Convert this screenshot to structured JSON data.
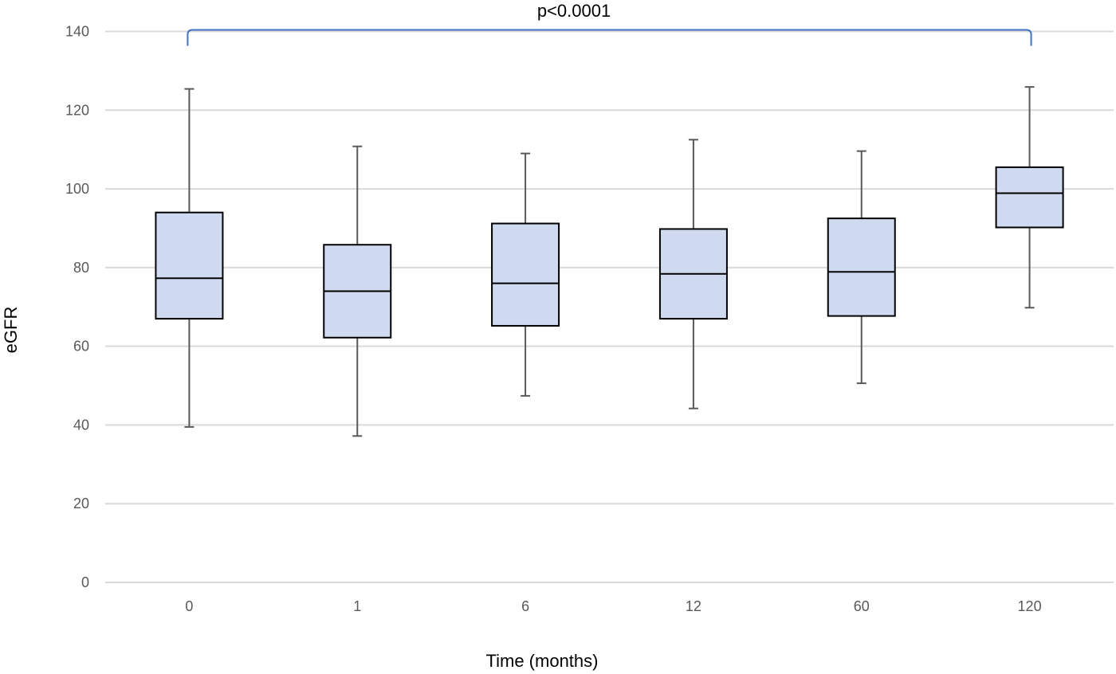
{
  "chart_data": {
    "type": "box",
    "title": "",
    "xlabel": "Time (months)",
    "ylabel": "eGFR",
    "ylim": [
      0,
      140
    ],
    "yticks": [
      0,
      20,
      40,
      60,
      80,
      100,
      120,
      140
    ],
    "grid": true,
    "legend": "none",
    "categories": [
      "0",
      "1",
      "6",
      "12",
      "60",
      "120"
    ],
    "boxes": [
      {
        "category": "0",
        "min": 39.5,
        "q1": 67.0,
        "median": 77.3,
        "q3": 94.0,
        "max": 125.4
      },
      {
        "category": "1",
        "min": 37.2,
        "q1": 62.2,
        "median": 74.0,
        "q3": 85.8,
        "max": 110.8
      },
      {
        "category": "6",
        "min": 47.4,
        "q1": 65.2,
        "median": 76.0,
        "q3": 91.2,
        "max": 109.0
      },
      {
        "category": "12",
        "min": 44.2,
        "q1": 67.0,
        "median": 78.4,
        "q3": 89.8,
        "max": 112.5
      },
      {
        "category": "60",
        "min": 50.6,
        "q1": 67.7,
        "median": 78.9,
        "q3": 92.5,
        "max": 109.6
      },
      {
        "category": "120",
        "min": 69.8,
        "q1": 90.2,
        "median": 98.9,
        "q3": 105.5,
        "max": 125.9
      }
    ],
    "annotation": {
      "text": "p<0.0001",
      "from": "0",
      "to": "120"
    },
    "colors": {
      "box_fill": "#cfdaf0",
      "box_edge": "#000000",
      "whisker": "#595959",
      "grid": "#d9d9d9",
      "bracket": "#4472c4"
    }
  }
}
